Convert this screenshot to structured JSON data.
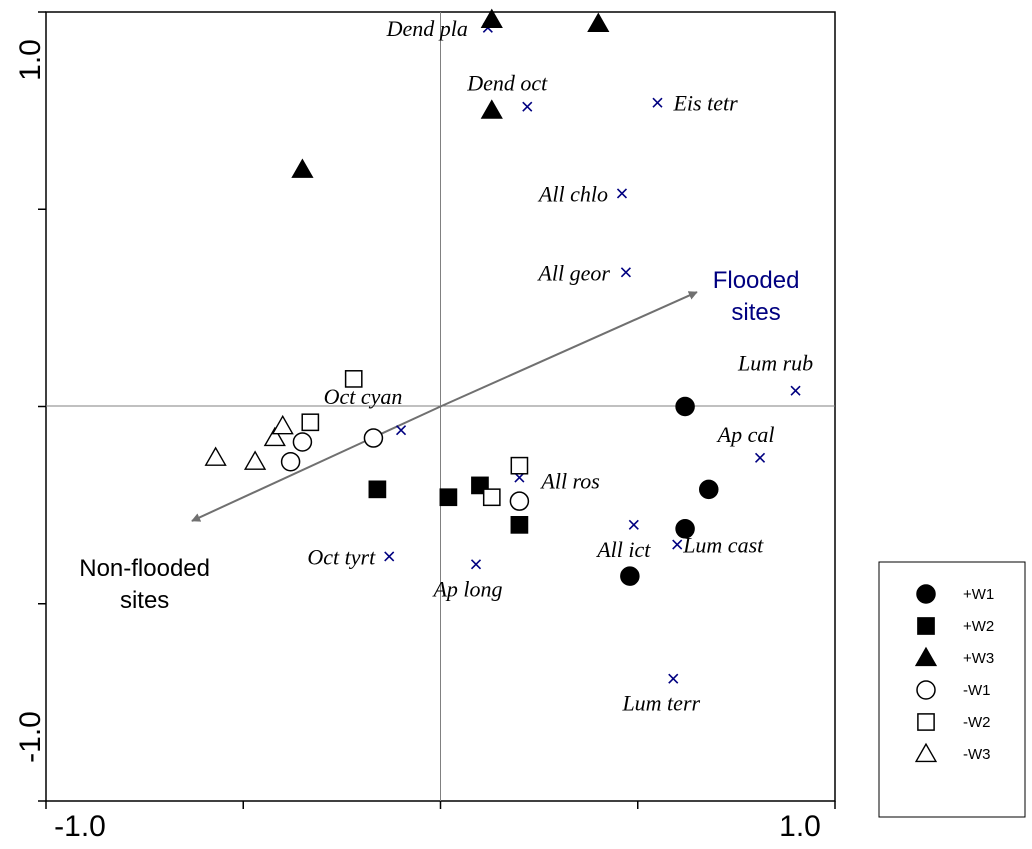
{
  "chart_data": {
    "type": "scatter",
    "title": "",
    "xlabel": "",
    "ylabel": "",
    "xlim": [
      -1.0,
      1.0
    ],
    "ylim": [
      -1.0,
      1.0
    ],
    "x_tick_labels": [
      "-1.0",
      "1.0"
    ],
    "y_tick_labels": [
      "-1.0",
      "1.0"
    ],
    "crosshair_at_origin": true,
    "grid": false,
    "legend_position": "right",
    "colors": {
      "samples": "#000000",
      "species": "#000080",
      "arrow": "#707070",
      "flooded_label": "#000080"
    },
    "series": [
      {
        "name": "+W1",
        "marker": "circle-filled",
        "points": [
          [
            0.62,
            0.0
          ],
          [
            0.68,
            -0.21
          ],
          [
            0.62,
            -0.31
          ],
          [
            0.48,
            -0.43
          ]
        ]
      },
      {
        "name": "+W2",
        "marker": "square-filled",
        "points": [
          [
            -0.16,
            -0.21
          ],
          [
            0.02,
            -0.23
          ],
          [
            0.1,
            -0.2
          ],
          [
            0.2,
            -0.3
          ]
        ]
      },
      {
        "name": "+W3",
        "marker": "triangle-filled",
        "points": [
          [
            -0.35,
            0.6
          ],
          [
            0.13,
            0.98
          ],
          [
            0.13,
            0.75
          ],
          [
            0.4,
            0.97
          ]
        ]
      },
      {
        "name": "-W1",
        "marker": "circle-open",
        "points": [
          [
            -0.35,
            -0.09
          ],
          [
            -0.38,
            -0.14
          ],
          [
            -0.17,
            -0.08
          ],
          [
            0.2,
            -0.24
          ]
        ]
      },
      {
        "name": "-W2",
        "marker": "square-open",
        "points": [
          [
            -0.22,
            0.07
          ],
          [
            -0.33,
            -0.04
          ],
          [
            0.13,
            -0.23
          ],
          [
            0.2,
            -0.15
          ]
        ]
      },
      {
        "name": "-W3",
        "marker": "triangle-open",
        "points": [
          [
            -0.57,
            -0.13
          ],
          [
            -0.47,
            -0.14
          ],
          [
            -0.42,
            -0.08
          ],
          [
            -0.4,
            -0.05
          ]
        ]
      }
    ],
    "species": [
      {
        "label": "Dend pla",
        "x": 0.12,
        "y": 0.96,
        "anchor": "end",
        "dx": -20,
        "dy": 8
      },
      {
        "label": "Dend oct",
        "x": 0.22,
        "y": 0.76,
        "anchor": "middle",
        "dx": -20,
        "dy": -16
      },
      {
        "label": "Eis tetr",
        "x": 0.55,
        "y": 0.77,
        "anchor": "start",
        "dx": 16,
        "dy": 8
      },
      {
        "label": "All chlo",
        "x": 0.46,
        "y": 0.54,
        "anchor": "end",
        "dx": -14,
        "dy": 8
      },
      {
        "label": "All geor",
        "x": 0.47,
        "y": 0.34,
        "anchor": "end",
        "dx": -16,
        "dy": 8
      },
      {
        "label": "Lum rub",
        "x": 0.9,
        "y": 0.04,
        "anchor": "middle",
        "dx": -20,
        "dy": -20
      },
      {
        "label": "Oct cyan",
        "x": -0.1,
        "y": -0.06,
        "anchor": "middle",
        "dx": -38,
        "dy": -26
      },
      {
        "label": "Ap cal",
        "x": 0.81,
        "y": -0.13,
        "anchor": "middle",
        "dx": -14,
        "dy": -16
      },
      {
        "label": "All ros",
        "x": 0.2,
        "y": -0.18,
        "anchor": "start",
        "dx": 22,
        "dy": 11
      },
      {
        "label": "All ict",
        "x": 0.49,
        "y": -0.3,
        "anchor": "middle",
        "dx": -10,
        "dy": 32
      },
      {
        "label": "Lum cast",
        "x": 0.6,
        "y": -0.35,
        "anchor": "start",
        "dx": 6,
        "dy": 8
      },
      {
        "label": "Oct tyrt",
        "x": -0.13,
        "y": -0.38,
        "anchor": "end",
        "dx": -14,
        "dy": 8
      },
      {
        "label": "Ap long",
        "x": 0.09,
        "y": -0.4,
        "anchor": "middle",
        "dx": -8,
        "dy": 32
      },
      {
        "label": "Lum terr",
        "x": 0.59,
        "y": -0.69,
        "anchor": "middle",
        "dx": -12,
        "dy": 32
      }
    ],
    "arrows": [
      {
        "label_lines": [
          "Flooded",
          "sites"
        ],
        "x": 0.65,
        "y": 0.29,
        "color": "#000080",
        "label_x": 0.8,
        "label_y": 0.3
      },
      {
        "label_lines": [
          "Non-flooded",
          "sites"
        ],
        "x": -0.63,
        "y": -0.29,
        "color": "#000000",
        "label_x": -0.75,
        "label_y": -0.43
      }
    ]
  }
}
